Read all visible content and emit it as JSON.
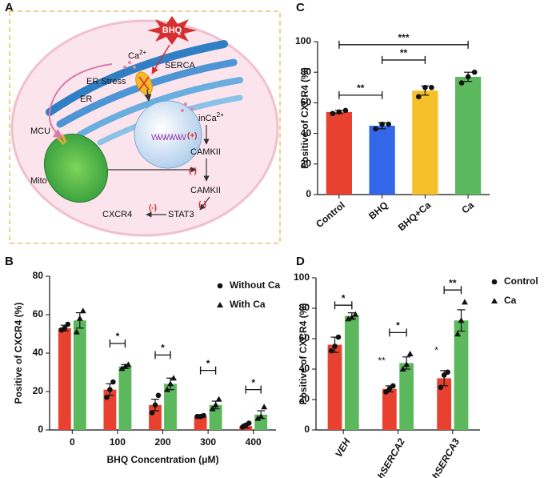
{
  "diagram": {
    "panel": "A",
    "labels": {
      "bhq": "BHQ",
      "ca": "Ca",
      "ca_sup": "2+",
      "er_stress": "ER Stress",
      "serca": "SERCA",
      "er": "ER",
      "inca": "inCa",
      "inca_sup": "2+",
      "plus": "(+)",
      "camkii_1": "CAMKII",
      "minus_1": "(-)",
      "camkii_2": "CAMKII",
      "minus_2": "(-)",
      "stat3": "STAT3",
      "minus_3": "(-)",
      "cxcr4": "CXCR4",
      "mcu": "MCU",
      "mito": "Mito",
      "dna": "WWWWW"
    }
  },
  "chart_data": [
    {
      "type": "bar",
      "panel": "B",
      "xlabel": "BHQ Concentration (μM)",
      "ylabel": "Positive of CXCR4 (%)",
      "categories": [
        "0",
        "100",
        "200",
        "300",
        "400"
      ],
      "series": [
        {
          "name": "Without Ca",
          "color": "#e8412f",
          "marker": "circle",
          "values": [
            53,
            21,
            13,
            7,
            2
          ],
          "errors": [
            1.5,
            3,
            3,
            0.5,
            1
          ],
          "points": [
            [
              52,
              53,
              55
            ],
            [
              17,
              21,
              25
            ],
            [
              9,
              13,
              18
            ],
            [
              7,
              7,
              7.5
            ],
            [
              1.5,
              2.5,
              3.5
            ]
          ]
        },
        {
          "name": "With Ca",
          "color": "#5cb85c",
          "marker": "triangle",
          "values": [
            57,
            33,
            24,
            13,
            8
          ],
          "errors": [
            4,
            1,
            3,
            2,
            2
          ],
          "points": [
            [
              51,
              58,
              62
            ],
            [
              32,
              33,
              34
            ],
            [
              21,
              24,
              27
            ],
            [
              11,
              13,
              16
            ],
            [
              6,
              7,
              12
            ]
          ]
        }
      ],
      "ylim": [
        0,
        80
      ],
      "yticks": [
        0,
        20,
        40,
        60,
        80
      ],
      "legend": "upper right",
      "brackets": [
        {
          "label": "*",
          "y": 45,
          "category": 1
        },
        {
          "label": "*",
          "y": 39,
          "category": 2
        },
        {
          "label": "*",
          "y": 31,
          "category": 3
        },
        {
          "label": "*",
          "y": 21,
          "category": 4
        }
      ]
    },
    {
      "type": "bar",
      "panel": "C",
      "ylabel": "Positive of CXCR4 (%)",
      "categories": [
        "Control",
        "BHQ",
        "BHQ+Ca",
        "Ca"
      ],
      "values": [
        54,
        45,
        68,
        77
      ],
      "errors": [
        1,
        2,
        3,
        3
      ],
      "points": [
        [
          53,
          54,
          55
        ],
        [
          43,
          46,
          46
        ],
        [
          64,
          70,
          70
        ],
        [
          73,
          77,
          80
        ]
      ],
      "colors": [
        "#e8412f",
        "#3366e8",
        "#f5c02a",
        "#5cb85c"
      ],
      "ylim": [
        0,
        100
      ],
      "yticks": [
        0,
        20,
        40,
        60,
        80,
        100
      ],
      "brackets": [
        {
          "label": "**",
          "y": 65,
          "from": 0,
          "to": 1
        },
        {
          "label": "**",
          "y": 88,
          "from": 1,
          "to": 2
        },
        {
          "label": "***",
          "y": 98,
          "from": 0,
          "to": 3
        }
      ]
    },
    {
      "type": "bar",
      "panel": "D",
      "ylabel": "Positive of CXCR4 (%)",
      "categories": [
        "VEH",
        "shSERCA2",
        "shSERCA3"
      ],
      "series": [
        {
          "name": "Control",
          "color": "#e8412f",
          "marker": "circle",
          "values": [
            56,
            27,
            34
          ],
          "errors": [
            5,
            2,
            5
          ],
          "points": [
            [
              52,
              55,
              61
            ],
            [
              25,
              27,
              29
            ],
            [
              28,
              36,
              38
            ]
          ]
        },
        {
          "name": "Ca",
          "color": "#5cb85c",
          "marker": "triangle",
          "values": [
            75,
            44,
            72
          ],
          "errors": [
            2,
            4,
            7
          ],
          "points": [
            [
              73,
              74,
              76
            ],
            [
              40,
              43,
              50
            ],
            [
              63,
              72,
              84
            ]
          ]
        }
      ],
      "ylim": [
        0,
        100
      ],
      "yticks": [
        0,
        20,
        40,
        60,
        80,
        100
      ],
      "legend": "upper right",
      "brackets": [
        {
          "label": "*",
          "y": 82,
          "category": 0
        },
        {
          "label": "*",
          "y": 64,
          "category": 1
        },
        {
          "label": "**",
          "y": 92,
          "category": 2
        }
      ],
      "notes": [
        {
          "label": "**",
          "y": 45,
          "category": 1,
          "series": 0
        },
        {
          "label": "*",
          "y": 52,
          "category": 2,
          "series": 0
        }
      ]
    }
  ]
}
